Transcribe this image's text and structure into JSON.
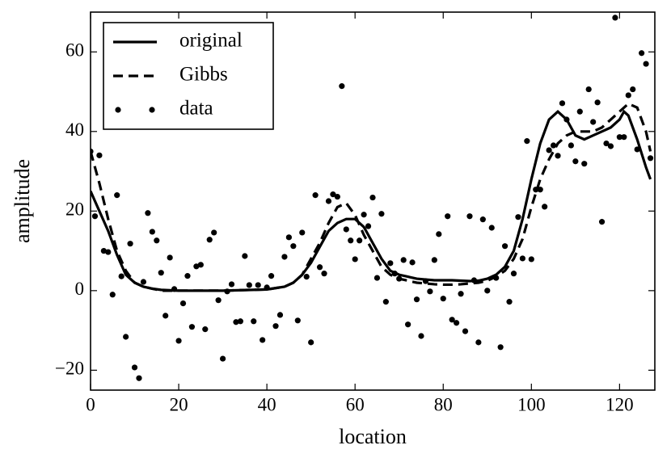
{
  "chart_data": {
    "type": "line",
    "x_label": "location",
    "y_label": "amplitude",
    "xlim": [
      0,
      128
    ],
    "ylim": [
      -25,
      70
    ],
    "xticks": [
      0,
      20,
      40,
      60,
      80,
      100,
      120
    ],
    "yticks": [
      {
        "value": -20,
        "label": "−20"
      },
      0,
      20,
      40,
      60
    ],
    "grid": false,
    "legend_loc": "upper left",
    "series": [
      {
        "name": "original",
        "color": "#000000",
        "style": "solid",
        "x": [
          0,
          2,
          4,
          6,
          8,
          10,
          12,
          14,
          16,
          20,
          30,
          40,
          44,
          46,
          48,
          50,
          52,
          54,
          56,
          58,
          60,
          62,
          64,
          66,
          68,
          70,
          72,
          74,
          76,
          78,
          80,
          82,
          84,
          86,
          88,
          90,
          92,
          94,
          96,
          98,
          100,
          102,
          104,
          106,
          108,
          110,
          112,
          114,
          116,
          118,
          120,
          121,
          122,
          124,
          126,
          127
        ],
        "values": [
          25,
          20,
          15,
          9,
          4,
          2,
          1,
          0.5,
          0.2,
          0,
          0,
          0.3,
          1,
          2,
          4,
          7,
          11,
          15,
          17,
          18,
          18,
          16,
          12,
          8,
          5,
          4,
          3.5,
          3,
          2.8,
          2.6,
          2.6,
          2.6,
          2.5,
          2.4,
          2.5,
          3,
          4,
          6,
          10,
          18,
          28,
          37,
          43,
          45,
          43,
          39,
          38,
          39,
          40,
          41,
          43,
          45,
          44,
          38,
          31,
          28
        ]
      },
      {
        "name": "Gibbs",
        "color": "#000000",
        "style": "dashed",
        "x": [
          0,
          2,
          4,
          6,
          8,
          10,
          12,
          14,
          16,
          20,
          30,
          40,
          44,
          46,
          48,
          50,
          52,
          54,
          56,
          58,
          60,
          62,
          64,
          66,
          68,
          70,
          72,
          74,
          76,
          78,
          80,
          82,
          84,
          86,
          88,
          90,
          92,
          94,
          96,
          98,
          100,
          102,
          104,
          106,
          108,
          110,
          112,
          114,
          116,
          118,
          120,
          122,
          124,
          126,
          127
        ],
        "values": [
          35,
          27,
          18,
          10,
          5,
          2,
          1,
          0.5,
          0,
          0,
          0,
          0.3,
          1,
          2,
          4,
          8,
          12,
          17,
          21,
          22,
          19,
          14,
          10,
          6,
          4,
          3,
          2.5,
          2,
          1.8,
          1.6,
          1.5,
          1.5,
          1.6,
          1.8,
          2,
          2.5,
          3.5,
          5,
          8,
          13,
          21,
          28,
          33,
          37,
          39,
          40,
          40,
          40,
          41,
          43,
          45,
          47,
          46,
          40,
          35
        ]
      },
      {
        "name": "data",
        "color": "#000000",
        "style": "markers",
        "x": [
          0,
          1,
          2,
          3,
          4,
          5,
          6,
          7,
          8,
          9,
          10,
          11,
          12,
          13,
          14,
          15,
          16,
          17,
          18,
          19,
          20,
          21,
          22,
          23,
          24,
          25,
          26,
          27,
          28,
          29,
          30,
          31,
          32,
          33,
          34,
          35,
          36,
          37,
          38,
          39,
          40,
          41,
          42,
          43,
          44,
          45,
          46,
          47,
          48,
          49,
          50,
          51,
          52,
          53,
          54,
          55,
          56,
          57,
          58,
          59,
          60,
          61,
          62,
          63,
          64,
          65,
          66,
          67,
          68,
          69,
          70,
          71,
          72,
          73,
          74,
          75,
          76,
          77,
          78,
          79,
          80,
          81,
          82,
          83,
          84,
          85,
          86,
          87,
          88,
          89,
          90,
          91,
          92,
          93,
          94,
          95,
          96,
          97,
          98,
          99,
          100,
          101,
          102,
          103,
          104,
          105,
          106,
          107,
          108,
          109,
          110,
          111,
          112,
          113,
          114,
          115,
          116,
          117,
          118,
          119,
          120,
          121,
          122,
          123,
          124,
          125,
          126,
          127
        ],
        "values": [
          35,
          18.7,
          34,
          10,
          9.7,
          -1,
          24,
          3.6,
          -11.6,
          11.8,
          -19.3,
          -22,
          2.2,
          19.5,
          14.8,
          12.6,
          4.5,
          -6.3,
          8.3,
          0.4,
          -12.6,
          -3.2,
          3.7,
          -9.1,
          6.1,
          6.5,
          -9.7,
          12.8,
          14.6,
          -2.4,
          -17.1,
          -0.2,
          1.6,
          -7.9,
          -7.7,
          8.7,
          1.4,
          -7.7,
          1.4,
          -12.4,
          0.8,
          3.7,
          -8.9,
          -6.1,
          8.5,
          13.4,
          11.2,
          -7.5,
          14.6,
          3.5,
          -13,
          24,
          5.9,
          4.3,
          22.5,
          24.2,
          23.6,
          51.4,
          15.4,
          12.6,
          7.9,
          12.6,
          19.1,
          16.2,
          23.4,
          3.2,
          19.3,
          -2.8,
          6.9,
          4.3,
          3,
          7.7,
          -8.5,
          7.1,
          -2.2,
          -11.4,
          2.4,
          -0.2,
          7.7,
          14.2,
          -2,
          18.7,
          -7.3,
          -8.1,
          -0.8,
          -10.2,
          18.7,
          2.6,
          -13,
          17.9,
          0,
          15.8,
          3.2,
          -14.2,
          11.2,
          -2.8,
          4.3,
          18.5,
          8.1,
          37.6,
          7.9,
          25.4,
          25.4,
          21.1,
          35.3,
          36.5,
          33.9,
          47.1,
          43,
          36.5,
          32.5,
          45,
          31.9,
          50.6,
          42.4,
          47.3,
          17.3,
          37,
          36.3,
          68.6,
          38.6,
          38.6,
          49.1,
          50.6,
          35.5,
          59.7,
          57,
          33.3
        ]
      }
    ]
  }
}
